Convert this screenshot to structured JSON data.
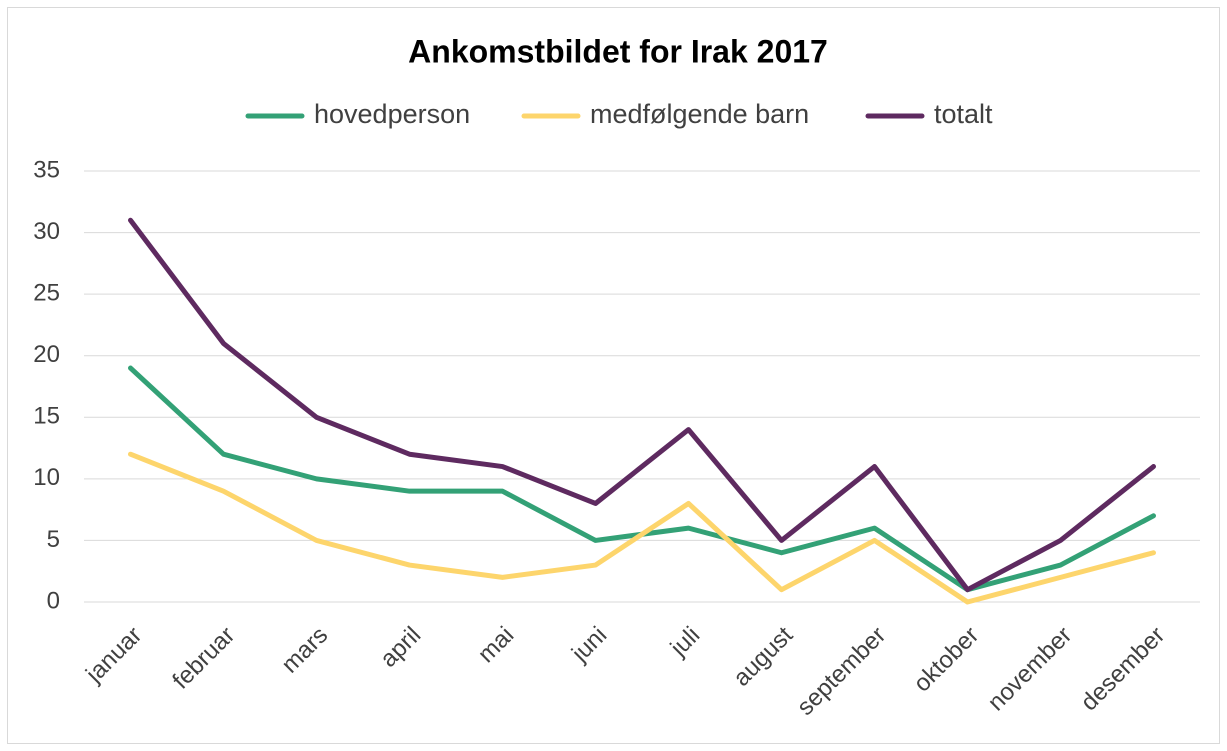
{
  "chart_data": {
    "type": "line",
    "title": "Ankomstbildet for Irak 2017",
    "categories": [
      "januar",
      "februar",
      "mars",
      "april",
      "mai",
      "juni",
      "juli",
      "august",
      "september",
      "oktober",
      "november",
      "desember"
    ],
    "series": [
      {
        "name": "hovedperson",
        "color": "#33a176",
        "values": [
          19,
          12,
          10,
          9,
          9,
          5,
          6,
          4,
          6,
          1,
          3,
          7
        ]
      },
      {
        "name": "medfølgende barn",
        "color": "#fdd56c",
        "values": [
          12,
          9,
          5,
          3,
          2,
          3,
          8,
          1,
          5,
          0,
          2,
          4
        ]
      },
      {
        "name": "totalt",
        "color": "#5e2a60",
        "values": [
          31,
          21,
          15,
          12,
          11,
          8,
          14,
          5,
          11,
          1,
          5,
          11
        ]
      }
    ],
    "ylim": [
      0,
      35
    ],
    "yticks": [
      0,
      5,
      10,
      15,
      20,
      25,
      30,
      35
    ],
    "grid": true,
    "legend": "top"
  }
}
